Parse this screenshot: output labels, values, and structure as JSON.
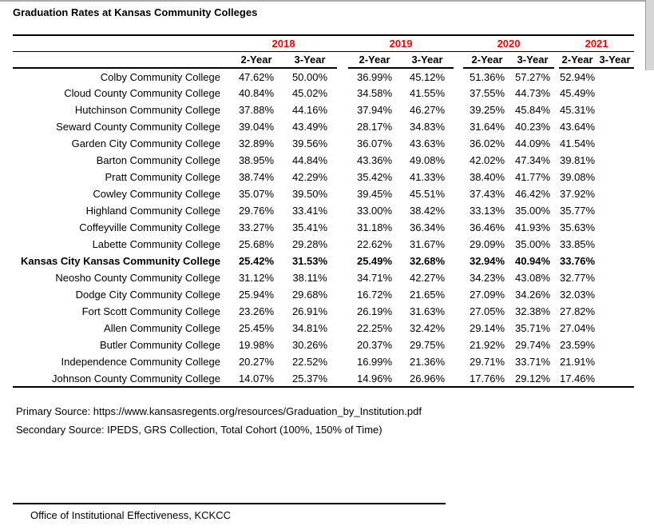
{
  "page": {
    "title": "Graduation Rates at Kansas Community Colleges"
  },
  "colors": {
    "accent_red": "#ff0000",
    "rule_black": "#000000",
    "edge_gray": "#d6d6d6"
  },
  "table": {
    "year_groups": [
      {
        "year": "2018",
        "cols": [
          "2-Year",
          "3-Year"
        ]
      },
      {
        "year": "2019",
        "cols": [
          "2-Year",
          "3-Year"
        ]
      },
      {
        "year": "2020",
        "cols": [
          "2-Year",
          "3-Year"
        ]
      },
      {
        "year": "2021",
        "cols": [
          "2-Year",
          "3-Year"
        ]
      }
    ],
    "rows": [
      {
        "name": "Colby Community College",
        "bold": false,
        "values": [
          "47.62%",
          "50.00%",
          "36.99%",
          "45.12%",
          "51.36%",
          "57.27%",
          "52.94%",
          ""
        ]
      },
      {
        "name": "Cloud County Community College",
        "bold": false,
        "values": [
          "40.84%",
          "45.02%",
          "34.58%",
          "41.55%",
          "37.55%",
          "44.73%",
          "45.49%",
          ""
        ]
      },
      {
        "name": "Hutchinson Community College",
        "bold": false,
        "values": [
          "37.88%",
          "44.16%",
          "37.94%",
          "46.27%",
          "39.25%",
          "45.84%",
          "45.31%",
          ""
        ]
      },
      {
        "name": "Seward County Community College",
        "bold": false,
        "values": [
          "39.04%",
          "43.49%",
          "28.17%",
          "34.83%",
          "31.64%",
          "40.23%",
          "43.64%",
          ""
        ]
      },
      {
        "name": "Garden City Community College",
        "bold": false,
        "values": [
          "32.89%",
          "39.56%",
          "36.07%",
          "43.63%",
          "36.02%",
          "44.09%",
          "41.54%",
          ""
        ]
      },
      {
        "name": "Barton Community College",
        "bold": false,
        "values": [
          "38.95%",
          "44.84%",
          "43.36%",
          "49.08%",
          "42.02%",
          "47.34%",
          "39.81%",
          ""
        ]
      },
      {
        "name": "Pratt Community College",
        "bold": false,
        "values": [
          "38.74%",
          "42.29%",
          "35.42%",
          "41.33%",
          "38.40%",
          "41.77%",
          "39.08%",
          ""
        ]
      },
      {
        "name": "Cowley Community College",
        "bold": false,
        "values": [
          "35.07%",
          "39.50%",
          "39.45%",
          "45.51%",
          "37.43%",
          "46.42%",
          "37.92%",
          ""
        ]
      },
      {
        "name": "Highland Community College",
        "bold": false,
        "values": [
          "29.76%",
          "33.41%",
          "33.00%",
          "38.42%",
          "33.13%",
          "35.00%",
          "35.77%",
          ""
        ]
      },
      {
        "name": "Coffeyville Community College",
        "bold": false,
        "values": [
          "33.27%",
          "35.41%",
          "31.18%",
          "36.34%",
          "36.46%",
          "41.93%",
          "35.63%",
          ""
        ]
      },
      {
        "name": "Labette Community College",
        "bold": false,
        "values": [
          "25.68%",
          "29.28%",
          "22.62%",
          "31.67%",
          "29.09%",
          "35.00%",
          "33.85%",
          ""
        ]
      },
      {
        "name": "Kansas City Kansas Community College",
        "bold": true,
        "values": [
          "25.42%",
          "31.53%",
          "25.49%",
          "32.68%",
          "32.94%",
          "40.94%",
          "33.76%",
          ""
        ]
      },
      {
        "name": "Neosho County Community College",
        "bold": false,
        "values": [
          "31.12%",
          "38.11%",
          "34.71%",
          "42.27%",
          "34.23%",
          "43.08%",
          "32.77%",
          ""
        ]
      },
      {
        "name": "Dodge City Community College",
        "bold": false,
        "values": [
          "25.94%",
          "29.68%",
          "16.72%",
          "21.65%",
          "27.09%",
          "34.26%",
          "32.03%",
          ""
        ]
      },
      {
        "name": "Fort Scott Community College",
        "bold": false,
        "values": [
          "23.26%",
          "26.91%",
          "26.19%",
          "31.63%",
          "27.05%",
          "32.38%",
          "27.82%",
          ""
        ]
      },
      {
        "name": "Allen Community College",
        "bold": false,
        "values": [
          "25.45%",
          "34.81%",
          "22.25%",
          "32.42%",
          "29.14%",
          "35.71%",
          "27.04%",
          ""
        ]
      },
      {
        "name": "Butler Community College",
        "bold": false,
        "values": [
          "19.98%",
          "30.26%",
          "20.37%",
          "29.75%",
          "21.92%",
          "29.74%",
          "23.59%",
          ""
        ]
      },
      {
        "name": "Independence Community College",
        "bold": false,
        "values": [
          "20.27%",
          "22.52%",
          "16.99%",
          "21.36%",
          "29.71%",
          "33.71%",
          "21.91%",
          ""
        ]
      },
      {
        "name": "Johnson County Community College",
        "bold": false,
        "values": [
          "14.07%",
          "25.37%",
          "14.96%",
          "26.96%",
          "17.76%",
          "29.12%",
          "17.46%",
          ""
        ]
      }
    ]
  },
  "footer": {
    "primary_source": "Primary Source: https://www.kansasregents.org/resources/Graduation_by_Institution.pdf",
    "secondary_source": "Secondary Source: IPEDS, GRS Collection, Total Cohort (100%, 150% of Time)",
    "office": "Office of Institutional Effectiveness, KCKCC"
  }
}
